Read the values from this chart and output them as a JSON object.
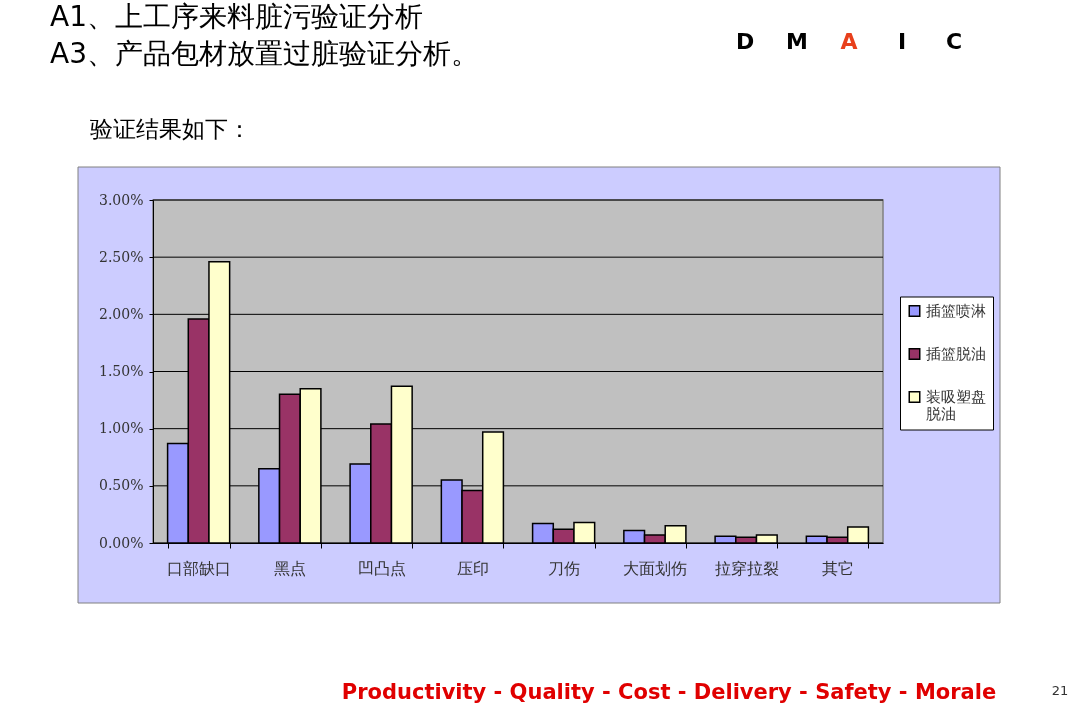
{
  "chart_data": {
    "type": "bar",
    "title": "A1、上工序来料脏污验证分析",
    "subtitle": "A3、产品包材放置过脏验证分析。",
    "annotations": [
      "验证结果如下：",
      "D",
      "M",
      "A",
      "I",
      "C",
      "Productivity - Quality - Cost - Delivery - Safety - Morale",
      "21"
    ],
    "categories": [
      "口部缺口",
      "黑点",
      "凹凸点",
      "压印",
      "刀伤",
      "大面划伤",
      "拉穿拉裂",
      "其它"
    ],
    "series": [
      {
        "name": "插篮喷淋",
        "color": "#9999ff",
        "values": [
          0.87,
          0.65,
          0.69,
          0.55,
          0.17,
          0.11,
          0.06,
          0.06
        ]
      },
      {
        "name": "插篮脱油",
        "color": "#993366",
        "values": [
          1.96,
          1.3,
          1.04,
          0.46,
          0.12,
          0.07,
          0.05,
          0.05
        ]
      },
      {
        "name": "装吸塑盘脱油",
        "color": "#ffffcc",
        "values": [
          2.46,
          1.35,
          1.37,
          0.97,
          0.18,
          0.15,
          0.07,
          0.14
        ]
      }
    ],
    "ylim": [
      0,
      3
    ],
    "yticks": [
      {
        "value": 0,
        "label": "0.00%"
      },
      {
        "value": 0.5,
        "label": "0.50%"
      },
      {
        "value": 1,
        "label": "1.00%"
      },
      {
        "value": 1.5,
        "label": "1.50%"
      },
      {
        "value": 2,
        "label": "2.00%"
      },
      {
        "value": 2.5,
        "label": "2.50%"
      },
      {
        "value": 3,
        "label": "3.00%"
      }
    ],
    "grid": "y",
    "legend": "right"
  }
}
